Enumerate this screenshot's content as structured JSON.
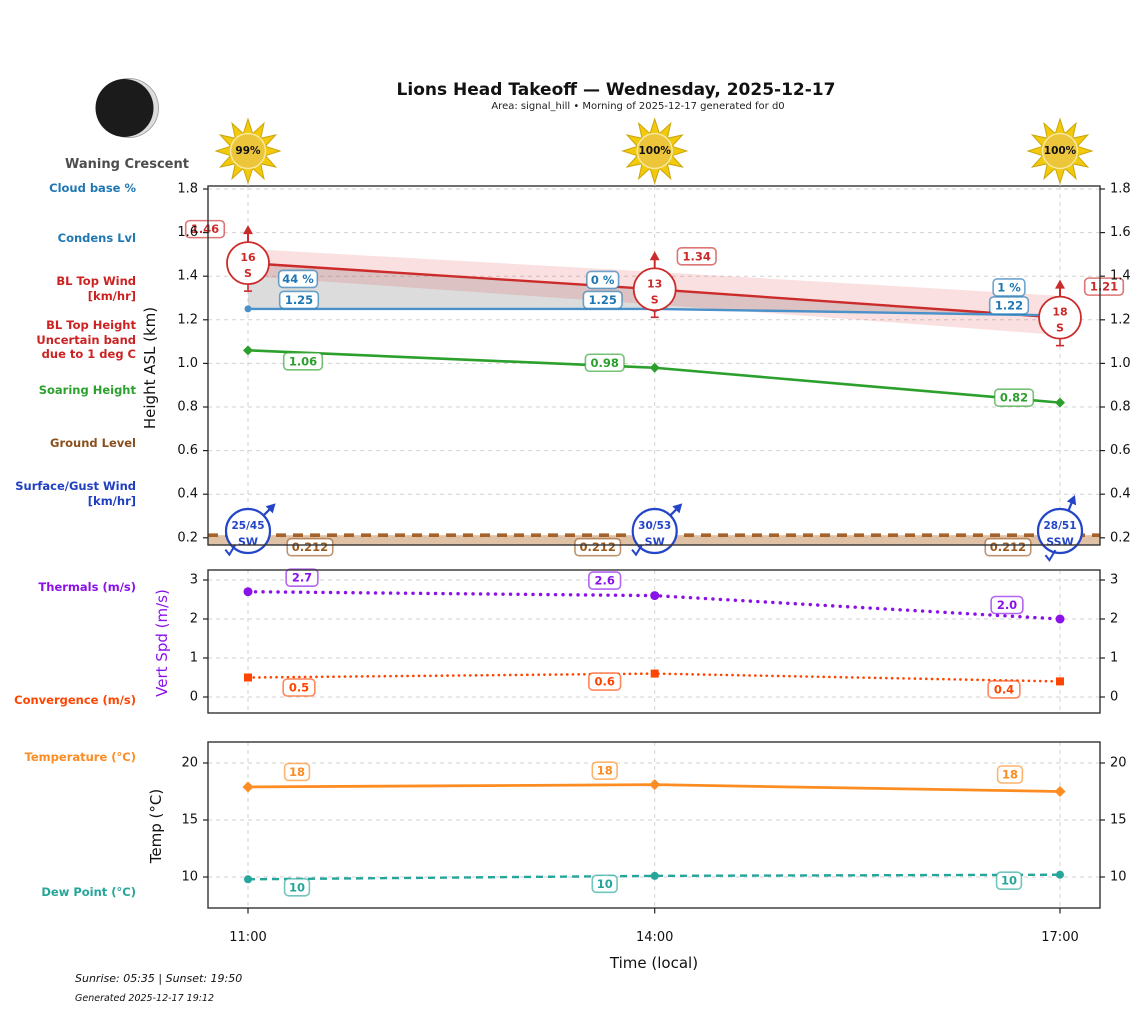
{
  "header": {
    "title": "Lions Head Takeoff — Wednesday, 2025-12-17",
    "subtitle": "Area: signal_hill • Morning of 2025-12-17 generated for d0",
    "moon_phase": "Waning Crescent",
    "sun_pct": [
      "99%",
      "100%",
      "100%"
    ]
  },
  "labels": {
    "cloud_base": "Cloud base %",
    "condens": "Condens Lvl",
    "bl_top_wind": "BL Top Wind\n[km/hr]",
    "bl_top_height": "BL Top Height\nUncertain band\ndue to 1 deg C",
    "soaring": "Soaring Height",
    "ground": "Ground Level",
    "surface_wind": "Surface/Gust Wind\n[km/hr]",
    "thermals": "Thermals (m/s)",
    "convergence": "Convergence (m/s)",
    "temperature": "Temperature (°C)",
    "dew_point": "Dew Point (°C)"
  },
  "colors": {
    "cloud_blue": "#1f77b4",
    "line_blue": "#4a90c9",
    "red": "#cc2b2b",
    "green": "#2ca02c",
    "brown_line": "#a5632b",
    "brown_text": "#9a5b22",
    "royal": "#2545c8",
    "purple": "#8a12e8",
    "orangered": "#ff4500",
    "orange": "#fd8c22",
    "teal": "#26a69a",
    "gold": "#f3c90c"
  },
  "footer": {
    "sun_times": "Sunrise: 05:35 | Sunset: 19:50",
    "generated": "Generated 2025-12-17 19:12"
  },
  "chart_data": [
    {
      "type": "line",
      "panel": "height",
      "ylabel": "Height ASL (km)",
      "x": [
        "11:00",
        "14:00",
        "17:00"
      ],
      "ylim": [
        0.17,
        1.82
      ],
      "yticks": [
        0.2,
        0.4,
        0.6,
        0.8,
        1.0,
        1.2,
        1.4,
        1.6,
        1.8
      ],
      "grid": true,
      "series": [
        {
          "name": "BL Top Height",
          "values": [
            1.46,
            1.34,
            1.21
          ],
          "labels": [
            "1.46",
            "1.34",
            "1.21"
          ],
          "note": "Uncertain band due to 1 deg C"
        },
        {
          "name": "Condens Lvl",
          "values": [
            1.25,
            1.25,
            1.22
          ],
          "labels": [
            "1.25",
            "1.25",
            "1.22"
          ]
        },
        {
          "name": "Cloud base %",
          "labels": [
            "44 %",
            "0 %",
            "1 %"
          ]
        },
        {
          "name": "Soaring Height",
          "values": [
            1.06,
            0.98,
            0.82
          ],
          "labels": [
            "1.06",
            "0.98",
            "0.82"
          ]
        },
        {
          "name": "Ground Level",
          "values": [
            0.212,
            0.212,
            0.212
          ],
          "labels": [
            "0.212",
            "0.212",
            "0.212"
          ]
        }
      ],
      "bl_top_wind": [
        {
          "speed": "16",
          "dir": "S"
        },
        {
          "speed": "13",
          "dir": "S"
        },
        {
          "speed": "18",
          "dir": "S"
        }
      ],
      "surface_gust_wind": [
        {
          "speed": "25/45",
          "dir": "SW"
        },
        {
          "speed": "30/53",
          "dir": "SW"
        },
        {
          "speed": "28/51",
          "dir": "SSW"
        }
      ]
    },
    {
      "type": "line",
      "panel": "vertical-speed",
      "ylabel": "Vert Spd (m/s)",
      "x": [
        "11:00",
        "14:00",
        "17:00"
      ],
      "ylim": [
        -0.4,
        3.3
      ],
      "yticks": [
        0,
        1,
        2,
        3
      ],
      "grid": true,
      "series": [
        {
          "name": "Thermals (m/s)",
          "values": [
            2.7,
            2.6,
            2.0
          ],
          "labels": [
            "2.7",
            "2.6",
            "2.0"
          ]
        },
        {
          "name": "Convergence (m/s)",
          "values": [
            0.5,
            0.6,
            0.4
          ],
          "labels": [
            "0.5",
            "0.6",
            "0.4"
          ]
        }
      ]
    },
    {
      "type": "line",
      "panel": "temperature",
      "ylabel": "Temp (°C)",
      "xlabel": "Time (local)",
      "x": [
        "11:00",
        "14:00",
        "17:00"
      ],
      "ylim": [
        7.3,
        21.8
      ],
      "yticks": [
        10,
        15,
        20
      ],
      "grid": true,
      "series": [
        {
          "name": "Temperature (°C)",
          "values": [
            17.9,
            18.1,
            17.5
          ],
          "labels": [
            "18",
            "18",
            "18"
          ]
        },
        {
          "name": "Dew Point (°C)",
          "values": [
            9.8,
            10.1,
            10.2
          ],
          "labels": [
            "10",
            "10",
            "10"
          ]
        }
      ]
    }
  ]
}
